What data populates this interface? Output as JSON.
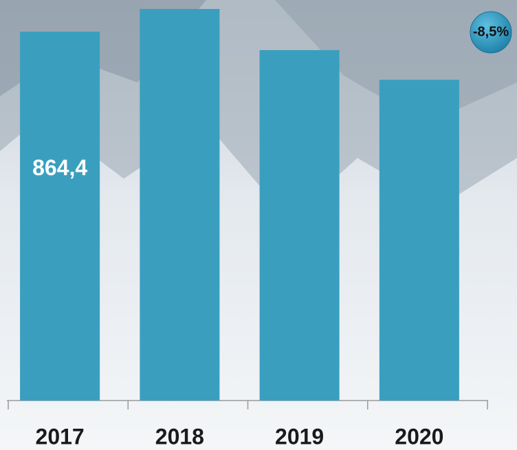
{
  "chart_data": {
    "type": "bar",
    "categories": [
      "2017",
      "2018",
      "2019",
      "2020"
    ],
    "values": [
      864.4,
      917.5,
      821,
      751.5
    ],
    "value_labels": [
      "864,4",
      null,
      null,
      null
    ],
    "color": "#3a9fbf",
    "annotation": "-8,5%"
  }
}
